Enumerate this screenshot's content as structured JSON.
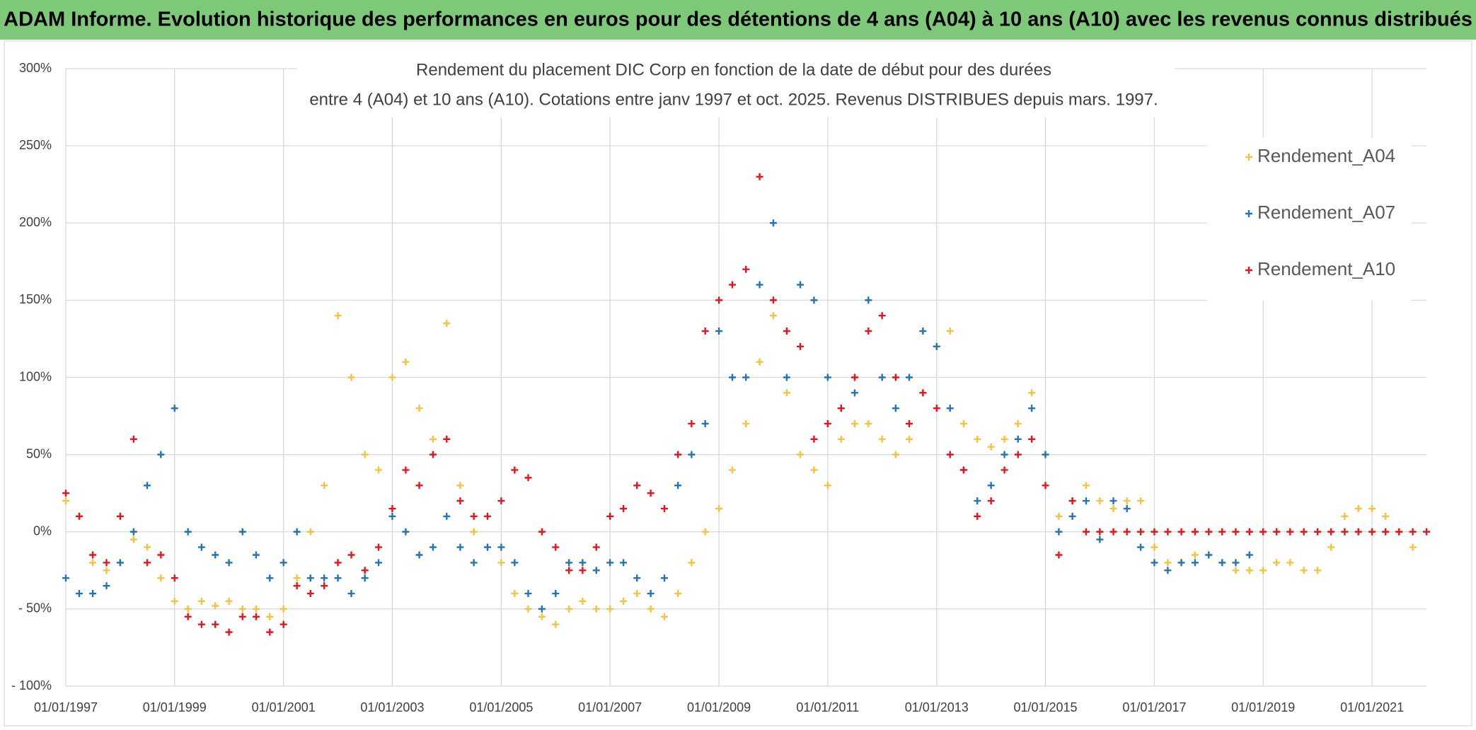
{
  "header": {
    "title": "ADAM Informe. Evolution historique des performances en euros pour des détentions de 4 ans (A04) à 10 ans (A10) avec les revenus connus distribués"
  },
  "chart_data": {
    "type": "scatter",
    "title": [
      "Rendement du placement DIC Corp en fonction de la date de début pour des durées",
      "entre 4 (A04) et 10 ans (A10). Cotations entre janv 1997 et oct. 2025. Revenus DISTRIBUES depuis mars. 1997."
    ],
    "x": [
      "1997-01-01",
      "1997-04-01",
      "1997-07-01",
      "1997-10-01",
      "1998-01-01",
      "1998-04-01",
      "1998-07-01",
      "1998-10-01",
      "1999-01-01",
      "1999-04-01",
      "1999-07-01",
      "1999-10-01",
      "2000-01-01",
      "2000-04-01",
      "2000-07-01",
      "2000-10-01",
      "2001-01-01",
      "2001-04-01",
      "2001-07-01",
      "2001-10-01",
      "2002-01-01",
      "2002-04-01",
      "2002-07-01",
      "2002-10-01",
      "2003-01-01",
      "2003-04-01",
      "2003-07-01",
      "2003-10-01",
      "2004-01-01",
      "2004-04-01",
      "2004-07-01",
      "2004-10-01",
      "2005-01-01",
      "2005-04-01",
      "2005-07-01",
      "2005-10-01",
      "2006-01-01",
      "2006-04-01",
      "2006-07-01",
      "2006-10-01",
      "2007-01-01",
      "2007-04-01",
      "2007-07-01",
      "2007-10-01",
      "2008-01-01",
      "2008-04-01",
      "2008-07-01",
      "2008-10-01",
      "2009-01-01",
      "2009-04-01",
      "2009-07-01",
      "2009-10-01",
      "2010-01-01",
      "2010-04-01",
      "2010-07-01",
      "2010-10-01",
      "2011-01-01",
      "2011-04-01",
      "2011-07-01",
      "2011-10-01",
      "2012-01-01",
      "2012-04-01",
      "2012-07-01",
      "2012-10-01",
      "2013-01-01",
      "2013-04-01",
      "2013-07-01",
      "2013-10-01",
      "2014-01-01",
      "2014-04-01",
      "2014-07-01",
      "2014-10-01",
      "2015-01-01",
      "2015-04-01",
      "2015-07-01",
      "2015-10-01",
      "2016-01-01",
      "2016-04-01",
      "2016-07-01",
      "2016-10-01",
      "2017-01-01",
      "2017-04-01",
      "2017-07-01",
      "2017-10-01",
      "2018-01-01",
      "2018-04-01",
      "2018-07-01",
      "2018-10-01",
      "2019-01-01",
      "2019-04-01",
      "2019-07-01",
      "2019-10-01",
      "2020-01-01",
      "2020-04-01",
      "2020-07-01",
      "2020-10-01",
      "2021-01-01",
      "2021-04-01",
      "2021-07-01",
      "2021-10-01",
      "2022-01-01"
    ],
    "series": [
      {
        "name": "Rendement_A04",
        "color": "#f5c242",
        "values": [
          20,
          10,
          -20,
          -25,
          -20,
          -5,
          -10,
          -30,
          -45,
          -50,
          -45,
          -48,
          -45,
          -50,
          -50,
          -55,
          -50,
          -30,
          0,
          30,
          140,
          100,
          50,
          40,
          100,
          110,
          80,
          60,
          135,
          30,
          0,
          -10,
          -20,
          -40,
          -50,
          -55,
          -60,
          -50,
          -45,
          -50,
          -50,
          -45,
          -40,
          -50,
          -55,
          -40,
          -20,
          0,
          15,
          40,
          70,
          110,
          140,
          90,
          50,
          40,
          30,
          60,
          70,
          70,
          60,
          50,
          60,
          90,
          120,
          130,
          70,
          60,
          55,
          60,
          70,
          90,
          50,
          10,
          20,
          30,
          20,
          15,
          20,
          20,
          -10,
          -20,
          -20,
          -15,
          -15,
          -20,
          -25,
          -25,
          -25,
          -20,
          -20,
          -25,
          -25,
          -10,
          10,
          15,
          15,
          10,
          0,
          -10,
          null
        ]
      },
      {
        "name": "Rendement_A07",
        "color": "#2474b5",
        "values": [
          -30,
          -40,
          -40,
          -35,
          -20,
          0,
          30,
          50,
          80,
          0,
          -10,
          -15,
          -20,
          0,
          -15,
          -30,
          -20,
          0,
          -30,
          -30,
          -30,
          -40,
          -30,
          -20,
          10,
          0,
          -15,
          -10,
          10,
          -10,
          -20,
          -10,
          -10,
          -20,
          -40,
          -50,
          -40,
          -20,
          -20,
          -25,
          -20,
          -20,
          -30,
          -40,
          -30,
          30,
          50,
          70,
          130,
          100,
          100,
          160,
          200,
          100,
          160,
          150,
          100,
          80,
          90,
          150,
          100,
          80,
          100,
          130,
          120,
          80,
          40,
          20,
          30,
          50,
          60,
          80,
          50,
          0,
          10,
          20,
          -5,
          20,
          15,
          -10,
          -20,
          -25,
          -20,
          -20,
          -15,
          -20,
          -20,
          -15,
          null,
          null,
          null,
          null,
          null,
          null,
          null,
          null,
          null,
          null,
          null,
          null,
          null
        ]
      },
      {
        "name": "Rendement_A10",
        "color": "#e8141b",
        "values": [
          25,
          10,
          -15,
          -20,
          10,
          60,
          -20,
          -15,
          -30,
          -55,
          -60,
          -60,
          -65,
          -55,
          -55,
          -65,
          -60,
          -35,
          -40,
          -35,
          -20,
          -15,
          -25,
          -10,
          15,
          40,
          30,
          50,
          60,
          20,
          10,
          10,
          20,
          40,
          35,
          0,
          -10,
          -25,
          -25,
          -10,
          10,
          15,
          30,
          25,
          15,
          50,
          70,
          130,
          150,
          160,
          170,
          230,
          150,
          130,
          120,
          60,
          70,
          80,
          100,
          130,
          140,
          100,
          70,
          90,
          80,
          50,
          40,
          10,
          20,
          40,
          50,
          60,
          30,
          -15,
          20,
          0,
          0,
          0,
          0,
          0,
          0,
          0,
          0,
          0,
          0,
          0,
          0,
          0,
          0,
          0,
          0,
          0,
          0,
          0,
          0,
          0,
          0,
          0,
          0,
          0,
          0
        ]
      }
    ],
    "xlim": [
      "1997-01-01",
      "2022-01-01"
    ],
    "xticks": [
      {
        "value": "1997-01-01",
        "label": "01/01/1997"
      },
      {
        "value": "1999-01-01",
        "label": "01/01/1999"
      },
      {
        "value": "2001-01-01",
        "label": "01/01/2001"
      },
      {
        "value": "2003-01-01",
        "label": "01/01/2003"
      },
      {
        "value": "2005-01-01",
        "label": "01/01/2005"
      },
      {
        "value": "2007-01-01",
        "label": "01/01/2007"
      },
      {
        "value": "2009-01-01",
        "label": "01/01/2009"
      },
      {
        "value": "2011-01-01",
        "label": "01/01/2011"
      },
      {
        "value": "2013-01-01",
        "label": "01/01/2013"
      },
      {
        "value": "2015-01-01",
        "label": "01/01/2015"
      },
      {
        "value": "2017-01-01",
        "label": "01/01/2017"
      },
      {
        "value": "2019-01-01",
        "label": "01/01/2019"
      },
      {
        "value": "2021-01-01",
        "label": "01/01/2021"
      }
    ],
    "ylim": [
      -100,
      300
    ],
    "yticks": [
      {
        "value": -100,
        "label": "- 100%"
      },
      {
        "value": -50,
        "label": "- 50%"
      },
      {
        "value": 0,
        "label": "0%"
      },
      {
        "value": 50,
        "label": "50%"
      },
      {
        "value": 100,
        "label": "100%"
      },
      {
        "value": 150,
        "label": "150%"
      },
      {
        "value": 200,
        "label": "200%"
      },
      {
        "value": 250,
        "label": "250%"
      },
      {
        "value": 300,
        "label": "300%"
      }
    ],
    "grid": true,
    "legend": "upper right"
  }
}
